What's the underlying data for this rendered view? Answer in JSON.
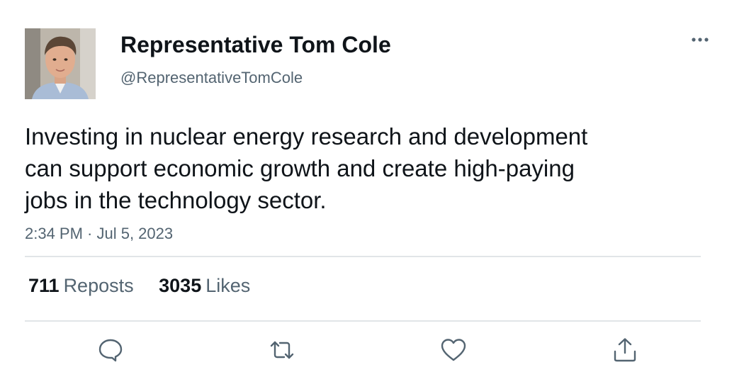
{
  "author": {
    "display_name": "Representative Tom Cole",
    "handle": "@RepresentativeTomCole"
  },
  "tweet": {
    "text_lines": [
      "Investing in nuclear energy research and development",
      "can support economic growth and create high-paying",
      "jobs in the technology sector."
    ],
    "timestamp": "2:34 PM · Jul 5, 2023"
  },
  "stats": {
    "reposts_count": "711",
    "reposts_label": "Reposts",
    "likes_count": "3035",
    "likes_label": "Likes"
  },
  "icons": {
    "more": "more-horizontal-icon",
    "reply": "reply-icon",
    "repost": "repost-icon",
    "like": "heart-icon",
    "share": "share-icon"
  },
  "colors": {
    "text_primary": "#0f1419",
    "text_secondary": "#536471",
    "divider": "#e1e5e8"
  }
}
